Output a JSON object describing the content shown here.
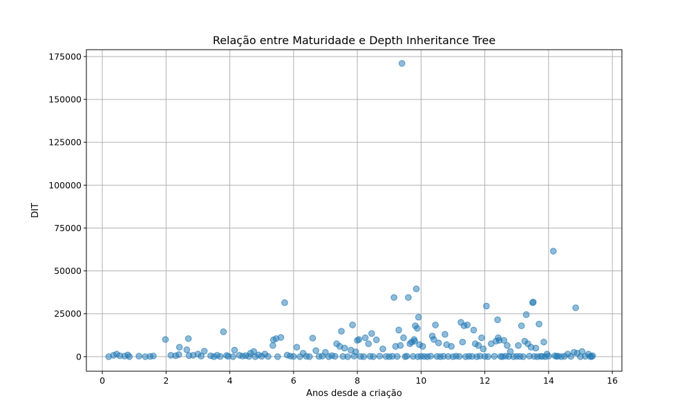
{
  "chart_data": {
    "type": "scatter",
    "title": "Relação entre Maturidade e Depth Inheritance Tree",
    "xlabel": "Anos desde a criação",
    "ylabel": "DIT",
    "xlim": [
      -0.5,
      16.3
    ],
    "ylim": [
      -8500,
      179000
    ],
    "xticks": [
      0,
      2,
      4,
      6,
      8,
      10,
      12,
      14,
      16
    ],
    "xtick_labels": [
      "0",
      "2",
      "4",
      "6",
      "8",
      "10",
      "12",
      "14",
      "16"
    ],
    "yticks": [
      0,
      25000,
      50000,
      75000,
      100000,
      125000,
      150000,
      175000
    ],
    "ytick_labels": [
      "0",
      "25000",
      "50000",
      "75000",
      "100000",
      "125000",
      "150000",
      "175000"
    ],
    "grid": true,
    "color": "#1f77b4",
    "points": [
      [
        0.2,
        0
      ],
      [
        0.35,
        800
      ],
      [
        0.45,
        1500
      ],
      [
        0.55,
        500
      ],
      [
        0.7,
        300
      ],
      [
        0.8,
        1000
      ],
      [
        0.85,
        0
      ],
      [
        1.15,
        300
      ],
      [
        1.35,
        0
      ],
      [
        1.5,
        100
      ],
      [
        1.6,
        400
      ],
      [
        1.98,
        10000
      ],
      [
        2.15,
        800
      ],
      [
        2.3,
        500
      ],
      [
        2.4,
        1200
      ],
      [
        2.42,
        5500
      ],
      [
        2.65,
        4000
      ],
      [
        2.7,
        10500
      ],
      [
        2.72,
        600
      ],
      [
        2.85,
        800
      ],
      [
        3.0,
        1500
      ],
      [
        3.1,
        300
      ],
      [
        3.2,
        3200
      ],
      [
        3.4,
        500
      ],
      [
        3.6,
        800
      ],
      [
        3.8,
        14500
      ],
      [
        3.9,
        700
      ],
      [
        4.15,
        3800
      ],
      [
        4.3,
        800
      ],
      [
        4.5,
        600
      ],
      [
        4.65,
        2000
      ],
      [
        4.75,
        3000
      ],
      [
        4.9,
        1000
      ],
      [
        5.1,
        1500
      ],
      [
        5.35,
        6500
      ],
      [
        5.37,
        9800
      ],
      [
        5.45,
        10500
      ],
      [
        5.6,
        11200
      ],
      [
        5.72,
        31500
      ],
      [
        5.8,
        900
      ],
      [
        6.1,
        5500
      ],
      [
        6.3,
        2000
      ],
      [
        6.6,
        10800
      ],
      [
        6.7,
        3500
      ],
      [
        7.0,
        2500
      ],
      [
        7.2,
        600
      ],
      [
        7.35,
        7500
      ],
      [
        7.45,
        6000
      ],
      [
        7.5,
        14800
      ],
      [
        7.6,
        5000
      ],
      [
        7.8,
        3800
      ],
      [
        7.85,
        18500
      ],
      [
        7.95,
        2800
      ],
      [
        8.0,
        9500
      ],
      [
        8.05,
        10000
      ],
      [
        8.25,
        11000
      ],
      [
        8.35,
        7500
      ],
      [
        8.45,
        13500
      ],
      [
        8.6,
        9800
      ],
      [
        8.8,
        4500
      ],
      [
        9.15,
        34500
      ],
      [
        9.2,
        6000
      ],
      [
        9.3,
        15500
      ],
      [
        9.35,
        6500
      ],
      [
        9.4,
        171000
      ],
      [
        9.45,
        11000
      ],
      [
        9.6,
        34500
      ],
      [
        9.65,
        7500
      ],
      [
        9.7,
        8500
      ],
      [
        9.78,
        10000
      ],
      [
        9.8,
        9000
      ],
      [
        9.82,
        18000
      ],
      [
        9.85,
        39500
      ],
      [
        9.88,
        16500
      ],
      [
        9.92,
        23000
      ],
      [
        9.95,
        7000
      ],
      [
        10.05,
        6000
      ],
      [
        10.35,
        12000
      ],
      [
        10.4,
        10000
      ],
      [
        10.45,
        18500
      ],
      [
        10.55,
        8000
      ],
      [
        10.75,
        13000
      ],
      [
        10.8,
        7000
      ],
      [
        10.95,
        6000
      ],
      [
        11.25,
        20000
      ],
      [
        11.3,
        8500
      ],
      [
        11.35,
        18000
      ],
      [
        11.45,
        18500
      ],
      [
        11.65,
        15500
      ],
      [
        11.7,
        7500
      ],
      [
        11.8,
        6500
      ],
      [
        11.9,
        11000
      ],
      [
        11.95,
        4500
      ],
      [
        12.05,
        29500
      ],
      [
        12.2,
        7500
      ],
      [
        12.35,
        9000
      ],
      [
        12.4,
        21500
      ],
      [
        12.42,
        11000
      ],
      [
        12.45,
        9500
      ],
      [
        12.6,
        9500
      ],
      [
        12.7,
        6500
      ],
      [
        12.8,
        3000
      ],
      [
        13.05,
        6500
      ],
      [
        13.15,
        18000
      ],
      [
        13.25,
        9000
      ],
      [
        13.3,
        24500
      ],
      [
        13.35,
        7500
      ],
      [
        13.45,
        5500
      ],
      [
        13.5,
        31500
      ],
      [
        13.52,
        31800
      ],
      [
        13.6,
        5000
      ],
      [
        13.7,
        19000
      ],
      [
        13.85,
        8500
      ],
      [
        13.95,
        1500
      ],
      [
        14.15,
        61500
      ],
      [
        14.2,
        500
      ],
      [
        14.3,
        300
      ],
      [
        14.6,
        1500
      ],
      [
        14.8,
        2500
      ],
      [
        14.85,
        28500
      ],
      [
        14.9,
        2000
      ],
      [
        15.05,
        3000
      ],
      [
        15.25,
        1500
      ],
      [
        15.35,
        0
      ],
      [
        3.5,
        0
      ],
      [
        3.7,
        100
      ],
      [
        3.95,
        200
      ],
      [
        4.1,
        0
      ],
      [
        4.4,
        300
      ],
      [
        4.6,
        100
      ],
      [
        4.8,
        0
      ],
      [
        5.0,
        200
      ],
      [
        5.2,
        100
      ],
      [
        5.5,
        0
      ],
      [
        5.9,
        300
      ],
      [
        6.0,
        100
      ],
      [
        6.2,
        0
      ],
      [
        6.4,
        200
      ],
      [
        6.5,
        0
      ],
      [
        6.8,
        100
      ],
      [
        6.9,
        300
      ],
      [
        7.1,
        0
      ],
      [
        7.3,
        200
      ],
      [
        7.55,
        100
      ],
      [
        7.7,
        0
      ],
      [
        7.9,
        300
      ],
      [
        8.1,
        100
      ],
      [
        8.2,
        0
      ],
      [
        8.4,
        200
      ],
      [
        8.5,
        0
      ],
      [
        8.7,
        300
      ],
      [
        8.9,
        100
      ],
      [
        9.0,
        0
      ],
      [
        9.1,
        200
      ],
      [
        9.25,
        100
      ],
      [
        9.5,
        0
      ],
      [
        9.55,
        300
      ],
      [
        9.75,
        100
      ],
      [
        9.9,
        0
      ],
      [
        10.0,
        200
      ],
      [
        10.1,
        100
      ],
      [
        10.2,
        0
      ],
      [
        10.3,
        300
      ],
      [
        10.5,
        100
      ],
      [
        10.6,
        0
      ],
      [
        10.7,
        200
      ],
      [
        10.85,
        100
      ],
      [
        11.0,
        0
      ],
      [
        11.1,
        300
      ],
      [
        11.2,
        100
      ],
      [
        11.4,
        0
      ],
      [
        11.5,
        200
      ],
      [
        11.6,
        100
      ],
      [
        11.75,
        0
      ],
      [
        11.85,
        300
      ],
      [
        12.0,
        100
      ],
      [
        12.1,
        0
      ],
      [
        12.3,
        200
      ],
      [
        12.5,
        100
      ],
      [
        12.55,
        0
      ],
      [
        12.65,
        300
      ],
      [
        12.75,
        100
      ],
      [
        12.9,
        0
      ],
      [
        13.0,
        200
      ],
      [
        13.1,
        100
      ],
      [
        13.2,
        0
      ],
      [
        13.4,
        300
      ],
      [
        13.55,
        100
      ],
      [
        13.65,
        0
      ],
      [
        13.75,
        200
      ],
      [
        13.8,
        100
      ],
      [
        13.9,
        0
      ],
      [
        14.0,
        300
      ],
      [
        14.25,
        100
      ],
      [
        14.4,
        0
      ],
      [
        14.5,
        200
      ],
      [
        14.7,
        100
      ],
      [
        15.0,
        0
      ],
      [
        15.15,
        200
      ],
      [
        15.3,
        100
      ],
      [
        15.38,
        500
      ]
    ]
  }
}
